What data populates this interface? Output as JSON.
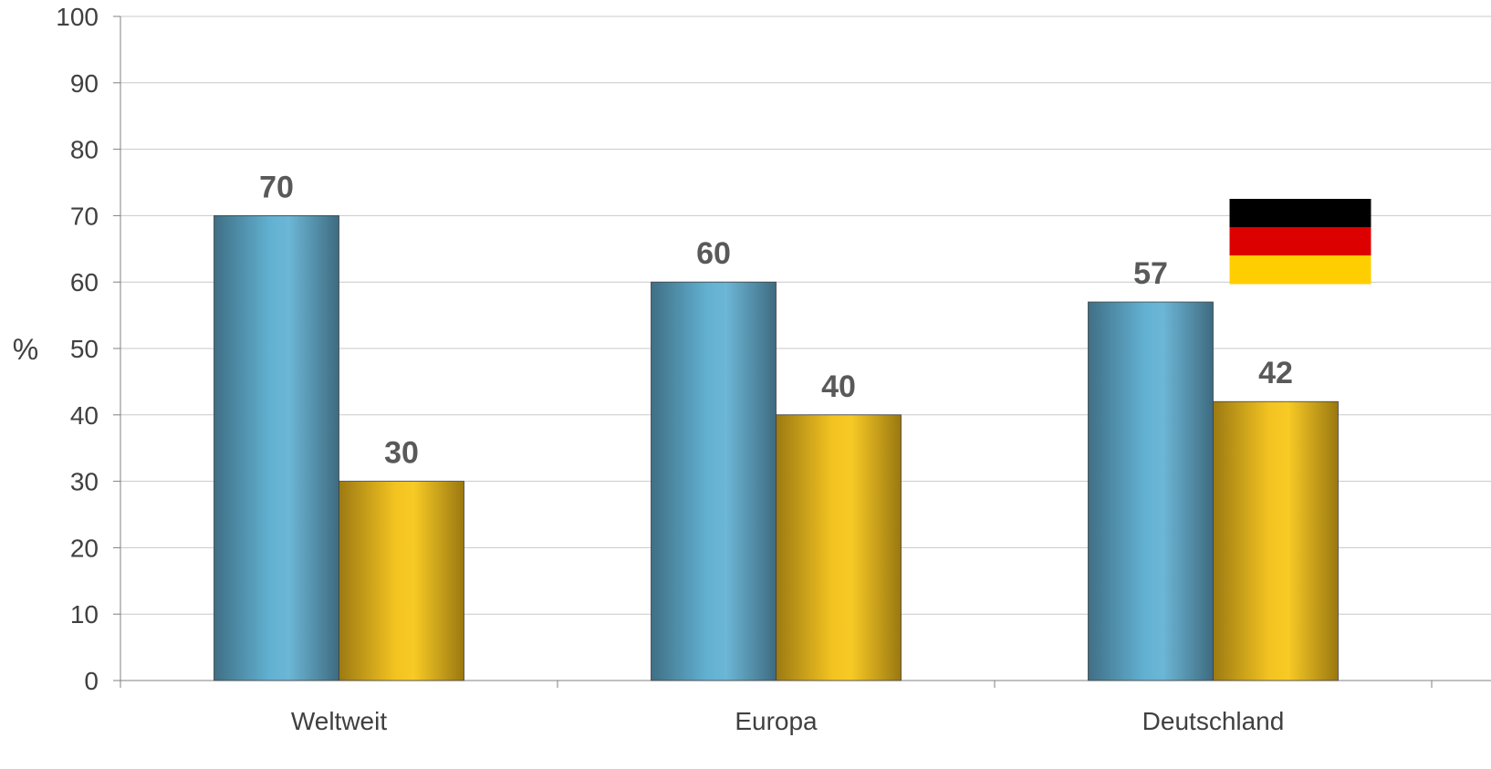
{
  "chart_data": {
    "type": "bar",
    "title": "",
    "xlabel": "",
    "ylabel": "%",
    "ylim": [
      0,
      100
    ],
    "yticks": [
      0,
      10,
      20,
      30,
      40,
      50,
      60,
      70,
      80,
      90,
      100
    ],
    "grid": true,
    "legend": "none",
    "categories": [
      "Weltweit",
      "Europa",
      "Deutschland"
    ],
    "series": [
      {
        "values": [
          70,
          60,
          57
        ],
        "color": "#5ea9c9"
      },
      {
        "values": [
          30,
          40,
          42
        ],
        "color": "#f2c11e"
      }
    ],
    "flag": {
      "icon": "germany-flag-icon",
      "colors": [
        "#000000",
        "#dd0000",
        "#ffce00"
      ],
      "category": "Deutschland"
    }
  }
}
